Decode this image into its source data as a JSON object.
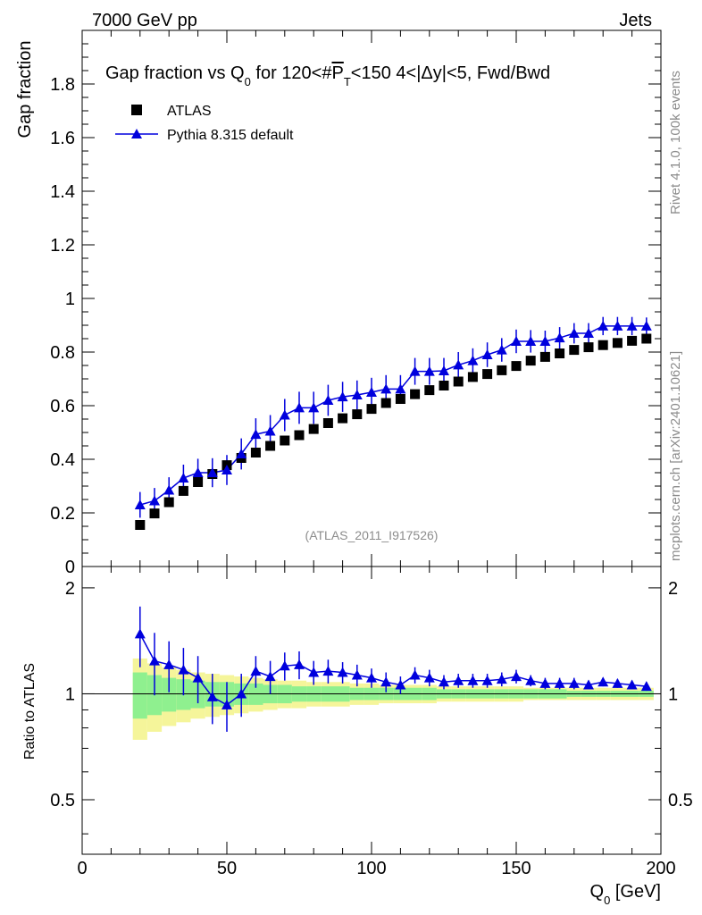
{
  "header": {
    "left": "7000 GeV pp",
    "right": "Jets"
  },
  "side_labels": {
    "rivet": "Rivet 4.1.0,  100k events",
    "mcplots": "mcplots.cern.ch [arXiv:2401.10621]"
  },
  "colors": {
    "data": "#000000",
    "mc": "#0000dd",
    "band_inner": "#8ff08f",
    "band_outer": "#f5f59a",
    "watermark": "#8c8c8c"
  },
  "chart_data": {
    "type": "scatter",
    "title": "Gap fraction vs Q_0 for 120<#P_T<150  4<|Δy|<5, Fwd/Bwd",
    "title_parts": {
      "prefix": "Gap fraction vs Q",
      "sub0": "0",
      "mid": " for 120<#",
      "pbar": "P",
      "subT": "T",
      "suffix": "<150  4<|Δy|<5, Fwd/Bwd"
    },
    "watermark": "(ATLAS_2011_I917526)",
    "ylabel": "Gap fraction",
    "ratio_ylabel": "Ratio to ATLAS",
    "xlabel": "Q_0 [GeV]",
    "xlabel_parts": {
      "q": "Q",
      "sub": "0",
      "unit": " [GeV]"
    },
    "xlim": [
      0,
      200
    ],
    "ylim": [
      0,
      2.0
    ],
    "ratio_ylim": [
      0.35,
      2.3
    ],
    "x_ticks": [
      0,
      50,
      100,
      150,
      200
    ],
    "y_ticks": [
      0.2,
      0.4,
      0.6,
      0.8,
      1,
      1.2,
      1.4,
      1.6,
      1.8
    ],
    "y_tick_zero_label": "0",
    "ratio_ticks": [
      {
        "value": 0.5,
        "label": "0.5"
      },
      {
        "value": 1,
        "label": "1"
      },
      {
        "value": 2,
        "label": "2"
      }
    ],
    "legend": [
      {
        "name": "ATLAS",
        "marker": "square"
      },
      {
        "name": "Pythia 8.315 default",
        "marker": "triangle"
      }
    ],
    "x": [
      20,
      25,
      30,
      35,
      40,
      45,
      50,
      55,
      60,
      65,
      70,
      75,
      80,
      85,
      90,
      95,
      100,
      105,
      110,
      115,
      120,
      125,
      130,
      135,
      140,
      145,
      150,
      155,
      160,
      165,
      170,
      175,
      180,
      185,
      190,
      195
    ],
    "series": [
      {
        "name": "ATLAS",
        "values": [
          0.155,
          0.198,
          0.24,
          0.282,
          0.315,
          0.345,
          0.378,
          0.405,
          0.425,
          0.45,
          0.47,
          0.49,
          0.513,
          0.535,
          0.553,
          0.568,
          0.588,
          0.61,
          0.625,
          0.643,
          0.658,
          0.675,
          0.69,
          0.707,
          0.718,
          0.732,
          0.748,
          0.768,
          0.782,
          0.795,
          0.808,
          0.818,
          0.826,
          0.834,
          0.842,
          0.85
        ]
      },
      {
        "name": "Pythia 8.315 default",
        "values": [
          0.23,
          0.245,
          0.285,
          0.33,
          0.35,
          0.35,
          0.36,
          0.42,
          0.493,
          0.505,
          0.565,
          0.592,
          0.592,
          0.62,
          0.633,
          0.64,
          0.65,
          0.662,
          0.662,
          0.728,
          0.728,
          0.73,
          0.752,
          0.768,
          0.79,
          0.808,
          0.84,
          0.84,
          0.84,
          0.853,
          0.87,
          0.87,
          0.897,
          0.897,
          0.897,
          0.897
        ],
        "errors": [
          0.048,
          0.048,
          0.048,
          0.05,
          0.052,
          0.054,
          0.056,
          0.058,
          0.06,
          0.06,
          0.06,
          0.06,
          0.06,
          0.058,
          0.056,
          0.054,
          0.054,
          0.052,
          0.052,
          0.05,
          0.05,
          0.048,
          0.048,
          0.046,
          0.046,
          0.044,
          0.044,
          0.042,
          0.04,
          0.04,
          0.038,
          0.038,
          0.034,
          0.034,
          0.034,
          0.032
        ]
      }
    ],
    "ratio": {
      "values": [
        1.48,
        1.24,
        1.21,
        1.17,
        1.11,
        0.98,
        0.93,
        1.0,
        1.16,
        1.12,
        1.2,
        1.21,
        1.15,
        1.16,
        1.15,
        1.13,
        1.11,
        1.08,
        1.06,
        1.13,
        1.11,
        1.08,
        1.09,
        1.09,
        1.09,
        1.1,
        1.12,
        1.09,
        1.07,
        1.07,
        1.07,
        1.06,
        1.08,
        1.07,
        1.06,
        1.05
      ],
      "errors": [
        0.29,
        0.25,
        0.2,
        0.18,
        0.17,
        0.16,
        0.15,
        0.14,
        0.12,
        0.12,
        0.11,
        0.11,
        0.09,
        0.09,
        0.08,
        0.08,
        0.07,
        0.07,
        0.06,
        0.06,
        0.06,
        0.05,
        0.05,
        0.05,
        0.05,
        0.05,
        0.05,
        0.04,
        0.04,
        0.04,
        0.04,
        0.03,
        0.03,
        0.03,
        0.03,
        0.03
      ],
      "band_inner": [
        0.15,
        0.13,
        0.11,
        0.1,
        0.09,
        0.08,
        0.08,
        0.07,
        0.07,
        0.06,
        0.06,
        0.05,
        0.05,
        0.05,
        0.05,
        0.04,
        0.04,
        0.04,
        0.04,
        0.04,
        0.04,
        0.03,
        0.03,
        0.03,
        0.03,
        0.03,
        0.03,
        0.03,
        0.03,
        0.03,
        0.02,
        0.02,
        0.02,
        0.02,
        0.02,
        0.02
      ],
      "band_outer": [
        0.26,
        0.22,
        0.19,
        0.17,
        0.15,
        0.14,
        0.13,
        0.12,
        0.11,
        0.1,
        0.09,
        0.09,
        0.08,
        0.08,
        0.08,
        0.07,
        0.07,
        0.06,
        0.06,
        0.06,
        0.06,
        0.05,
        0.05,
        0.05,
        0.05,
        0.05,
        0.05,
        0.04,
        0.04,
        0.04,
        0.04,
        0.04,
        0.04,
        0.04,
        0.04,
        0.04
      ]
    }
  }
}
